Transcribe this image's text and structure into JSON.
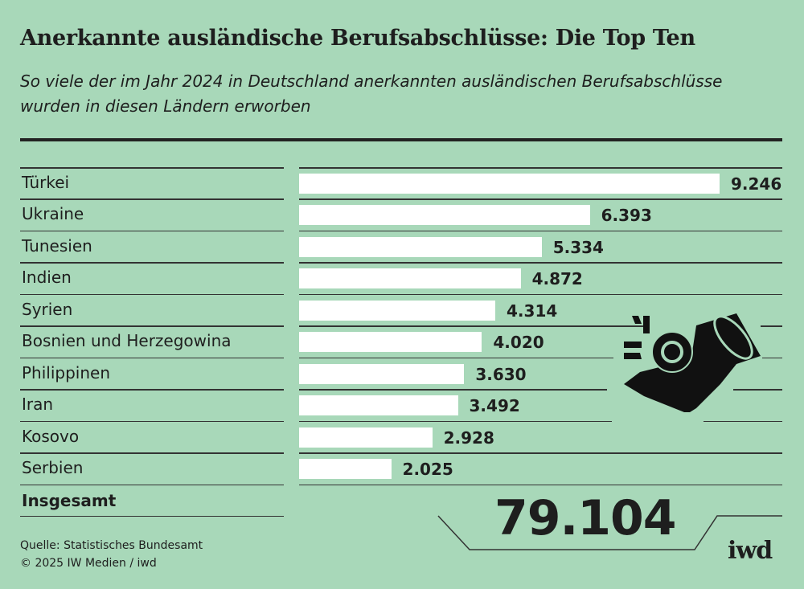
{
  "header": {
    "title": "Anerkannte ausländische Berufsabschlüsse: Die Top Ten",
    "subtitle": "So viele der im Jahr 2024 in Deutschland anerkannten ausländischen Berufsabschlüsse wurden in diesen Ländern erworben"
  },
  "chart_data": {
    "type": "bar",
    "orientation": "horizontal",
    "categories": [
      "Türkei",
      "Ukraine",
      "Tunesien",
      "Indien",
      "Syrien",
      "Bosnien und Herzegowina",
      "Philippinen",
      "Iran",
      "Kosovo",
      "Serbien"
    ],
    "values": [
      9246,
      6393,
      5334,
      4872,
      4314,
      4020,
      3630,
      3492,
      2928,
      2025
    ],
    "value_labels": [
      "9.246",
      "6.393",
      "5.334",
      "4.872",
      "4.314",
      "4.020",
      "3.630",
      "3.492",
      "2.928",
      "2.025"
    ],
    "bar_color": "#ffffff",
    "background_color": "#a8d8b9"
  },
  "total": {
    "label": "Insgesamt",
    "value": "79.104"
  },
  "icon": "diploma-scroll-icon",
  "footer": {
    "source": "Quelle: Statistisches Bundesamt",
    "copyright": "© 2025 IW Medien / iwd",
    "logo": "iwd"
  }
}
